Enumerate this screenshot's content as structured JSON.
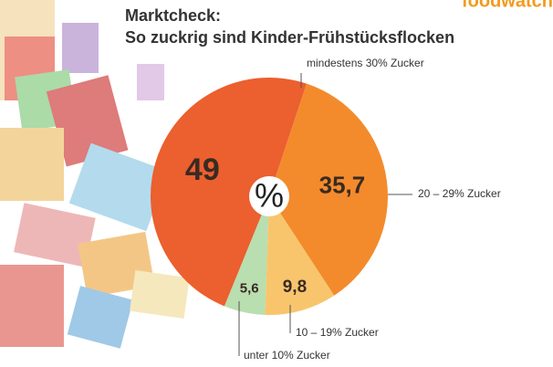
{
  "logo": "foodwatch",
  "chart_data": {
    "type": "pie",
    "title": "Marktcheck:",
    "subtitle": "So zuckrig sind Kinder-Frühstücksflocken",
    "categories": [
      "mindestens 30% Zucker",
      "20 – 29% Zucker",
      "10 – 19% Zucker",
      "unter 10% Zucker"
    ],
    "values": [
      49,
      35.7,
      9.8,
      5.6
    ],
    "value_labels": [
      "49",
      "35,7",
      "9,8",
      "5,6"
    ],
    "colors": [
      "#ec5f2e",
      "#f38b2c",
      "#f8c56c",
      "#b9deb0"
    ],
    "center_label": "%"
  }
}
